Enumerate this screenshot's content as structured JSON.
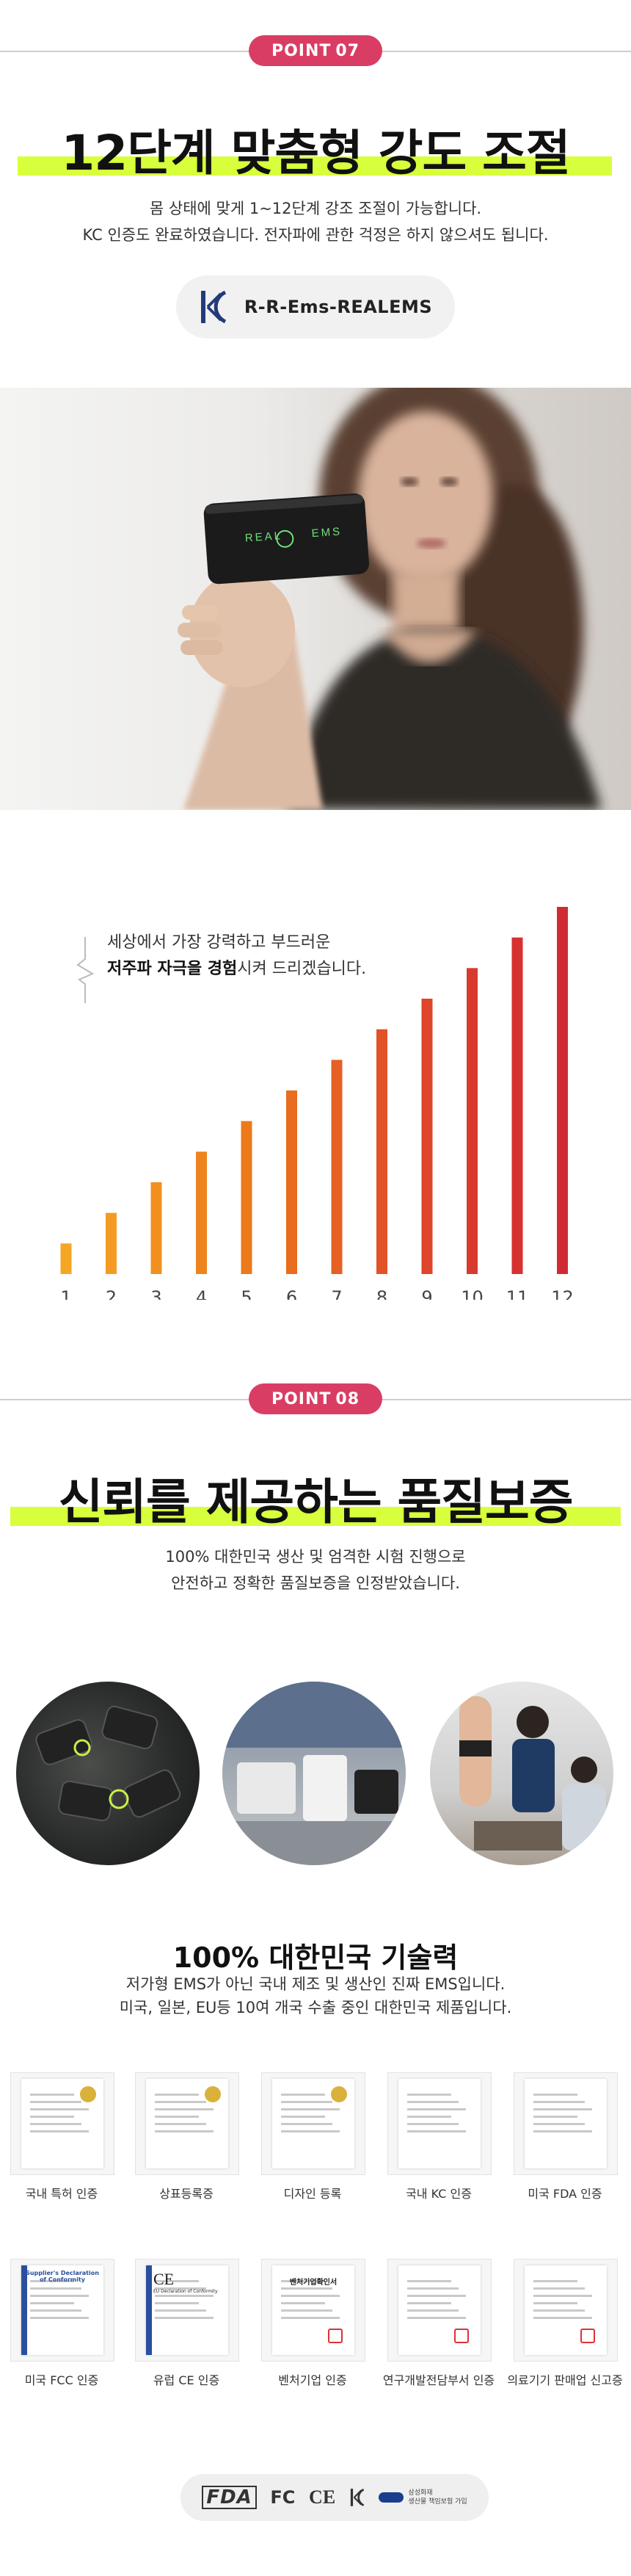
{
  "section07": {
    "point_label": "POINT",
    "point_num": "07",
    "title": "12단계 맞춤형 강도 조절",
    "desc_line1": "몸 상태에 맞게 1~12단계 강조 조절이 가능합니다.",
    "desc_line2": "KC 인증도 완료하였습니다. 전자파에 관한 걱정은 하지 않으셔도 됩니다.",
    "kc_code": "R-R-Ems-REALEMS",
    "device_brand_left": "REAL",
    "device_brand_right": "EMS"
  },
  "strength": {
    "line1": "세상에서 가장 강력하고 부드러운",
    "line2_bold": "저주파 자극을 경험",
    "line2_rest": "시켜 드리겠습니다."
  },
  "chart_data": {
    "type": "bar",
    "categories": [
      "1",
      "2",
      "3",
      "4",
      "5",
      "6",
      "7",
      "8",
      "9",
      "10",
      "11",
      "12"
    ],
    "values": [
      1,
      2,
      3,
      4,
      5,
      6,
      7,
      8,
      9,
      10,
      11,
      12
    ],
    "ylim": [
      0,
      12
    ],
    "colors": [
      "#f5a623",
      "#f39b22",
      "#f1901f",
      "#ee841d",
      "#ec7a1b",
      "#e96c1f",
      "#e65f23",
      "#e25227",
      "#de452b",
      "#d93a2e",
      "#d63131",
      "#d22a33"
    ]
  },
  "section08": {
    "point_label": "POINT",
    "point_num": "08",
    "title": "신뢰를 제공하는 품질보증",
    "desc_line1": "100% 대한민국 생산 및 엄격한 시험 진행으로",
    "desc_line2": "안전하고 정확한 품질보증을 인정받았습니다."
  },
  "tech": {
    "title": "100% 대한민국 기술력",
    "line1": "저가형 EMS가 아닌 국내 제조 및 생산인 진짜 EMS입니다.",
    "line2": "미국, 일본, EU등 10여 개국 수출 중인 대한민국 제품입니다."
  },
  "certs": [
    {
      "label": "국내 특허 인증"
    },
    {
      "label": "상표등록증"
    },
    {
      "label": "디자인 등록"
    },
    {
      "label": "국내 KC 인증"
    },
    {
      "label": "미국 FDA 인증"
    },
    {
      "label": "미국 FCC 인증"
    },
    {
      "label": "유럽 CE 인증"
    },
    {
      "label": "벤처기업 인증"
    },
    {
      "label": "연구개발전담부서 인증"
    },
    {
      "label": "의료기기 판매업 신고증"
    }
  ],
  "cert_doc_texts": {
    "fcc_title": "Supplier's Declaration of Conformity",
    "ce_mark": "CE",
    "ce_title": "EU Declaration of Conformity",
    "venture_title": "벤처기업확인서"
  },
  "logos": {
    "fda": "FDA",
    "fc": "FC",
    "ce": "CE",
    "samsung_line1": "삼성화재",
    "samsung_line2": "생산물 책임보험 가입"
  },
  "colors": {
    "accent": "#d93d64",
    "highlight": "#d7ff3b"
  }
}
